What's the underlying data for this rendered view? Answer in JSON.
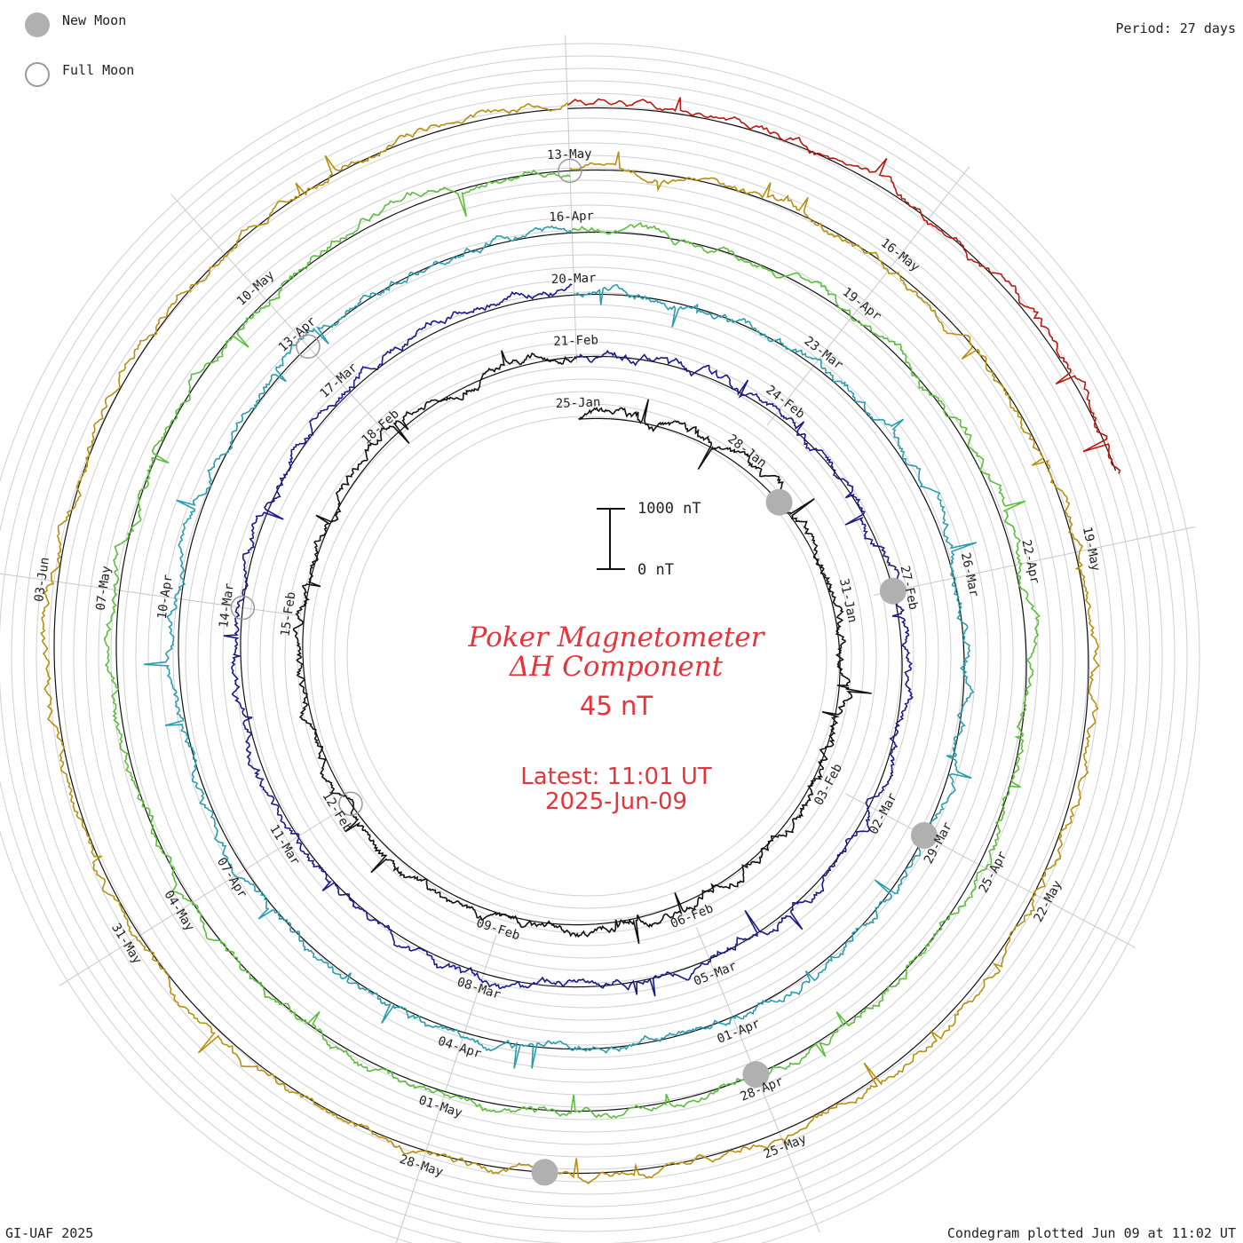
{
  "legend": {
    "new_moon": "New Moon",
    "full_moon": "Full Moon",
    "new_moon_color": "#b0b0b0",
    "full_moon_color": "#9a9a9a"
  },
  "period_label": "Period: 27 days",
  "title_line1": "Poker Magnetometer",
  "title_line2": "ΔH Component",
  "current_value": "45 nT",
  "latest_time": "Latest: 11:01 UT",
  "latest_date": "2025-Jun-09",
  "scale": {
    "top_label": "1000 nT",
    "bottom_label": "0 nT"
  },
  "footer_left": "GI-UAF 2025",
  "footer_right": "Condegram plotted Jun 09 at 11:02 UT",
  "title_color": "#e8333b",
  "chart_data": {
    "type": "line",
    "title": "Poker Magnetometer ΔH Component",
    "period_days": 27,
    "y_unit": "nT",
    "series": [
      {
        "cycle": 1,
        "start": "2025-01-25",
        "color": "#111111",
        "baseline_nT": 0
      },
      {
        "cycle": 2,
        "start": "2025-02-21",
        "color": "#1a1a8c",
        "baseline_nT": 0
      },
      {
        "cycle": 3,
        "start": "2025-03-20",
        "color": "#2a9db0",
        "baseline_nT": 0
      },
      {
        "cycle": 4,
        "start": "2025-04-16",
        "color": "#5cbf3c",
        "baseline_nT": 0
      },
      {
        "cycle": 5,
        "start": "2025-05-13",
        "color": "#b8900f",
        "baseline_nT": 0
      },
      {
        "cycle": 6,
        "start": "2025-06-09",
        "color": "#b81a10",
        "baseline_nT": 0
      }
    ],
    "date_labels": [
      {
        "text": "25-Jan",
        "day": 0
      },
      {
        "text": "28-Jan",
        "day": 3
      },
      {
        "text": "31-Jan",
        "day": 6
      },
      {
        "text": "03-Feb",
        "day": 9
      },
      {
        "text": "06-Feb",
        "day": 12
      },
      {
        "text": "09-Feb",
        "day": 15
      },
      {
        "text": "12-Feb",
        "day": 18
      },
      {
        "text": "15-Feb",
        "day": 21
      },
      {
        "text": "18-Feb",
        "day": 24
      },
      {
        "text": "21-Feb",
        "day": 27
      },
      {
        "text": "24-Feb",
        "day": 30
      },
      {
        "text": "27-Feb",
        "day": 33
      },
      {
        "text": "02-Mar",
        "day": 36
      },
      {
        "text": "05-Mar",
        "day": 39
      },
      {
        "text": "08-Mar",
        "day": 42
      },
      {
        "text": "11-Mar",
        "day": 45
      },
      {
        "text": "14-Mar",
        "day": 48
      },
      {
        "text": "17-Mar",
        "day": 51
      },
      {
        "text": "20-Mar",
        "day": 54
      },
      {
        "text": "23-Mar",
        "day": 57
      },
      {
        "text": "26-Mar",
        "day": 60
      },
      {
        "text": "29-Mar",
        "day": 63
      },
      {
        "text": "01-Apr",
        "day": 66
      },
      {
        "text": "04-Apr",
        "day": 69
      },
      {
        "text": "07-Apr",
        "day": 72
      },
      {
        "text": "10-Apr",
        "day": 75
      },
      {
        "text": "13-Apr",
        "day": 78
      },
      {
        "text": "16-Apr",
        "day": 81
      },
      {
        "text": "19-Apr",
        "day": 84
      },
      {
        "text": "22-Apr",
        "day": 87
      },
      {
        "text": "25-Apr",
        "day": 90
      },
      {
        "text": "28-Apr",
        "day": 93
      },
      {
        "text": "01-May",
        "day": 96
      },
      {
        "text": "04-May",
        "day": 99
      },
      {
        "text": "07-May",
        "day": 102
      },
      {
        "text": "10-May",
        "day": 105
      },
      {
        "text": "13-May",
        "day": 108
      },
      {
        "text": "16-May",
        "day": 111
      },
      {
        "text": "19-May",
        "day": 114
      },
      {
        "text": "22-May",
        "day": 117
      },
      {
        "text": "25-May",
        "day": 120
      },
      {
        "text": "28-May",
        "day": 123
      },
      {
        "text": "31-May",
        "day": 126
      },
      {
        "text": "03-Jun",
        "day": 129
      },
      {
        "text": "07-May",
        "day": 102
      }
    ],
    "new_moon_days": [
      4,
      33,
      63,
      93,
      122
    ],
    "full_moon_days": [
      18,
      48,
      78,
      108
    ]
  }
}
